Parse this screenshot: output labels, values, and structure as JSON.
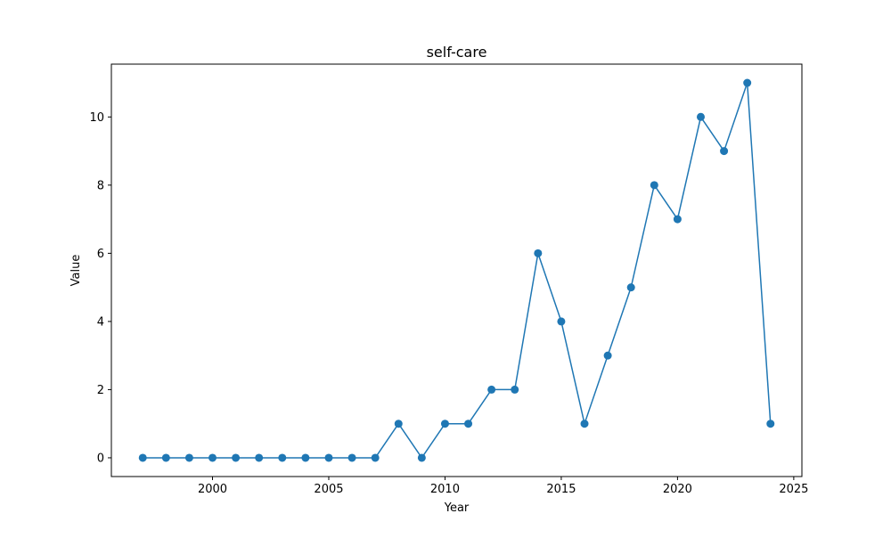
{
  "chart_data": {
    "type": "line",
    "title": "self-care",
    "xlabel": "Year",
    "ylabel": "Value",
    "xlim": [
      1995.65,
      2025.35
    ],
    "ylim": [
      -0.55,
      11.55
    ],
    "xticks": [
      2000,
      2005,
      2010,
      2015,
      2020,
      2025
    ],
    "yticks": [
      0,
      2,
      4,
      6,
      8,
      10
    ],
    "grid": false,
    "color": "#1f77b4",
    "marker": "circle",
    "x": [
      1997,
      1998,
      1999,
      2000,
      2001,
      2002,
      2003,
      2004,
      2005,
      2006,
      2007,
      2008,
      2009,
      2010,
      2011,
      2012,
      2013,
      2014,
      2015,
      2016,
      2017,
      2018,
      2019,
      2020,
      2021,
      2022,
      2023,
      2024
    ],
    "values": [
      0,
      0,
      0,
      0,
      0,
      0,
      0,
      0,
      0,
      0,
      0,
      1,
      0,
      1,
      1,
      2,
      2,
      6,
      4,
      1,
      3,
      5,
      8,
      7,
      10,
      9,
      11,
      1
    ]
  }
}
